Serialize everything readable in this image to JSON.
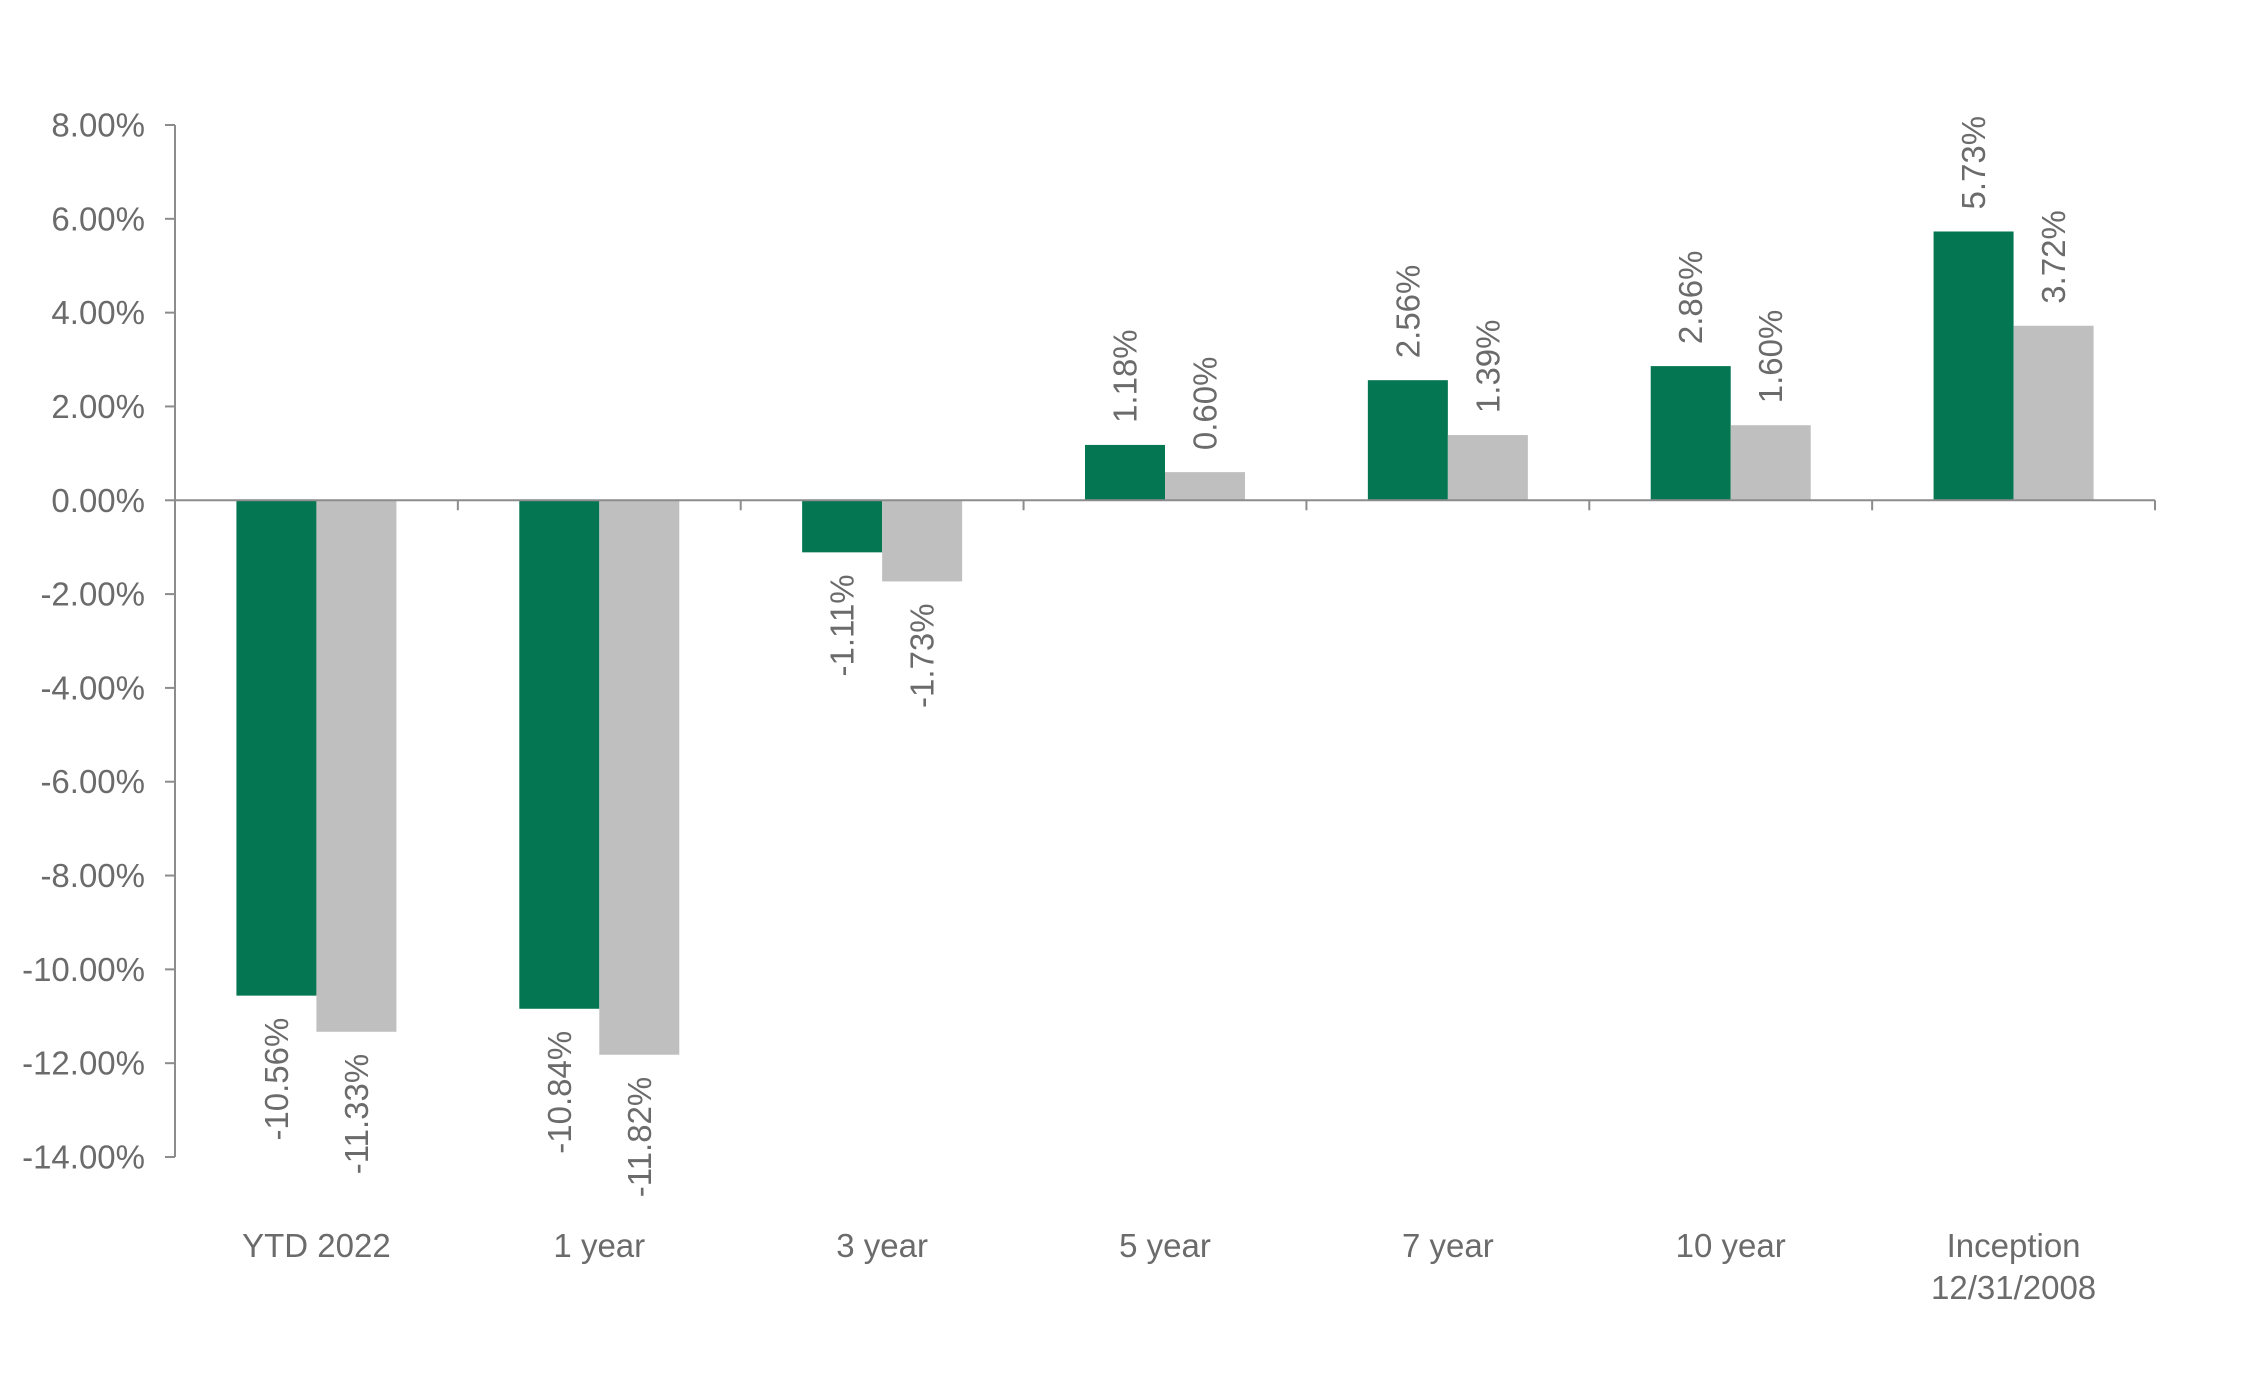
{
  "chart_data": {
    "type": "bar",
    "title": "",
    "xlabel": "",
    "ylabel": "",
    "categories": [
      [
        "YTD 2022"
      ],
      [
        "1 year"
      ],
      [
        "3 year"
      ],
      [
        "5 year"
      ],
      [
        "7 year"
      ],
      [
        "10 year"
      ],
      [
        "Inception",
        "12/31/2008"
      ]
    ],
    "series": [
      {
        "name": "Series 1",
        "color": "#047652",
        "values": [
          -10.56,
          -10.84,
          -1.11,
          1.18,
          2.56,
          2.86,
          5.73
        ],
        "labels": [
          "-10.56%",
          "-10.84%",
          "-1.11%",
          "1.18%",
          "2.56%",
          "2.86%",
          "5.73%"
        ]
      },
      {
        "name": "Series 2",
        "color": "#bfbfbf",
        "values": [
          -11.33,
          -11.82,
          -1.73,
          0.6,
          1.39,
          1.6,
          3.72
        ],
        "labels": [
          "-11.33%",
          "-11.82%",
          "-1.73%",
          "0.60%",
          "1.39%",
          "1.60%",
          "3.72%"
        ]
      }
    ],
    "ylim": [
      -14,
      8
    ],
    "yticks": [
      8,
      6,
      4,
      2,
      0,
      -2,
      -4,
      -6,
      -8,
      -10,
      -12,
      -14
    ],
    "ytick_labels": [
      "8.00%",
      "6.00%",
      "4.00%",
      "2.00%",
      "0.00%",
      "-2.00%",
      "-4.00%",
      "-6.00%",
      "-8.00%",
      "-10.00%",
      "-12.00%",
      "-14.00%"
    ],
    "grid": false,
    "legend": "none",
    "text_color": "#6b6b6b",
    "axis_color": "#8c8c8c"
  }
}
